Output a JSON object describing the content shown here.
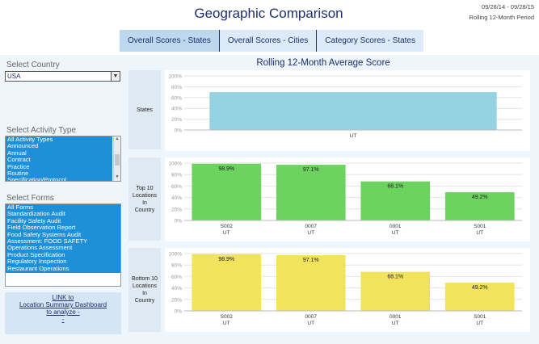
{
  "header": {
    "title": "Geographic Comparison",
    "date_range": "09/28/14 - 09/28/15",
    "period": "Rolling 12-Month Period"
  },
  "tabs": [
    {
      "label": "Overall Scores - States",
      "active": true
    },
    {
      "label": "Overall Scores - Cities",
      "active": false
    },
    {
      "label": "Category Scores - States",
      "active": false
    }
  ],
  "sidebar": {
    "country": {
      "label": "Select Country",
      "value": "USA"
    },
    "activity_type": {
      "label": "Select Activity Type",
      "items": [
        "All Activity Types",
        "Announced",
        "Annual",
        "Contract",
        "Practice",
        "Routine",
        "Specification/Protocol"
      ]
    },
    "forms": {
      "label": "Select Forms",
      "items": [
        "All Forms",
        "Standardization Audit",
        "Facility Safety Audit",
        "Field Observation Report",
        "Food Safety Systems Audit",
        "Assessment:  FOOD SAFETY",
        "Operations Assessment",
        "Product Specification",
        "Regulatory Inspection",
        "Restaurant Operations"
      ]
    },
    "link": {
      "line1": "LINK to",
      "line2": "Location Summary Dashboard",
      "line3": "to analyze -",
      "line4": "-"
    }
  },
  "chart_title": "Rolling 12-Month Average Score",
  "colors": {
    "states": "#95d3e3",
    "top": "#6dd35f",
    "bottom": "#f1e45c"
  },
  "chart_data": [
    {
      "type": "bar",
      "row_label": "States",
      "yticks": [
        "100%",
        "80%",
        "60%",
        "40%",
        "20%",
        "0%"
      ],
      "ylim": [
        0,
        100
      ],
      "categories": [
        {
          "line1": "UT",
          "line2": ""
        }
      ],
      "values": [
        70
      ],
      "value_labels": [
        ""
      ]
    },
    {
      "type": "bar",
      "row_label": "Top 10 Locations In Country",
      "row_label_lines": [
        "Top 10",
        "Locations",
        "In",
        "Country"
      ],
      "yticks": [
        "100%",
        "80%",
        "60%",
        "40%",
        "20%",
        "0%"
      ],
      "ylim": [
        0,
        100
      ],
      "categories": [
        {
          "line1": "S002",
          "line2": "UT"
        },
        {
          "line1": "0007",
          "line2": "UT"
        },
        {
          "line1": "0001",
          "line2": "UT"
        },
        {
          "line1": "S001",
          "line2": "UT"
        }
      ],
      "values": [
        98.9,
        97.1,
        68.1,
        49.2
      ],
      "value_labels": [
        "98.9%",
        "97.1%",
        "68.1%",
        "49.2%"
      ]
    },
    {
      "type": "bar",
      "row_label": "Bottom 10 Locations In Country",
      "row_label_lines": [
        "Bottom 10",
        "Locations",
        "In",
        "Country"
      ],
      "yticks": [
        "100%",
        "80%",
        "60%",
        "40%",
        "20%",
        "0%"
      ],
      "ylim": [
        0,
        100
      ],
      "categories": [
        {
          "line1": "S002",
          "line2": "UT"
        },
        {
          "line1": "0007",
          "line2": "UT"
        },
        {
          "line1": "0001",
          "line2": "UT"
        },
        {
          "line1": "S001",
          "line2": "UT"
        }
      ],
      "values": [
        98.9,
        97.1,
        68.1,
        49.2
      ],
      "value_labels": [
        "98.9%",
        "97.1%",
        "68.1%",
        "49.2%"
      ]
    }
  ]
}
